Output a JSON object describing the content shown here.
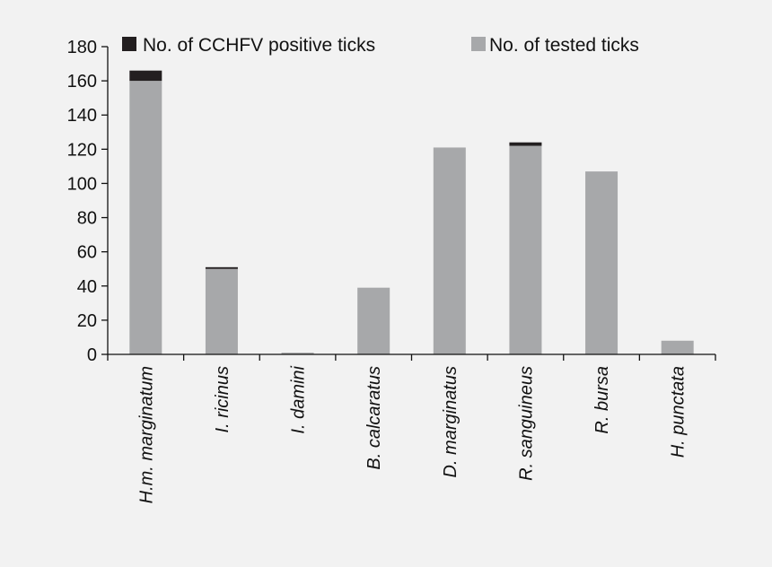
{
  "chart_data": {
    "type": "bar",
    "stacked": true,
    "categories": [
      "H.m. marginatum",
      "I. ricinus",
      "I. damini",
      "B. calcaratus",
      "D. marginatus",
      "R. sanguineus",
      "R. bursa",
      "H. punctata"
    ],
    "series": [
      {
        "name": "No. of tested ticks",
        "color": "#a7a8aa",
        "values": [
          160,
          50,
          1,
          39,
          121,
          122,
          107,
          8
        ]
      },
      {
        "name": "No. of CCHFV positive ticks",
        "color": "#231f20",
        "values": [
          6,
          1,
          0,
          0,
          0,
          2,
          0,
          0
        ]
      }
    ],
    "ylim": [
      0,
      180
    ],
    "yticks": [
      0,
      20,
      40,
      60,
      80,
      100,
      120,
      140,
      160,
      180
    ],
    "title": "",
    "xlabel": "",
    "ylabel": "",
    "grid": false,
    "legend_position": "top"
  }
}
